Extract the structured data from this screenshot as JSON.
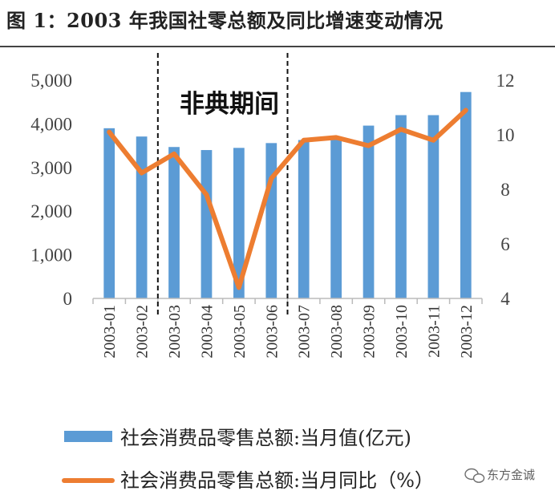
{
  "figure_title": "图 1：2003 年我国社零总额及同比增速变动情况",
  "chart_data": {
    "type": "bar",
    "categories": [
      "2003-01",
      "2003-02",
      "2003-03",
      "2003-04",
      "2003-05",
      "2003-06",
      "2003-07",
      "2003-08",
      "2003-09",
      "2003-10",
      "2003-11",
      "2003-12"
    ],
    "series": [
      {
        "name": "社会消费品零售总额:当月值(亿元)",
        "type": "bar",
        "axis": "left",
        "color": "#5b9bd5",
        "values": [
          3900,
          3710,
          3470,
          3400,
          3450,
          3560,
          3630,
          3680,
          3960,
          4200,
          4200,
          4730
        ]
      },
      {
        "name": "社会消费品零售总额:当月同比（%）",
        "type": "line",
        "axis": "right",
        "color": "#ed7d31",
        "values": [
          10.1,
          8.6,
          9.3,
          7.8,
          4.4,
          8.4,
          9.8,
          9.9,
          9.6,
          10.2,
          9.8,
          10.9
        ]
      }
    ],
    "y_left": {
      "min": 0,
      "max": 5000,
      "ticks": [
        0,
        1000,
        2000,
        3000,
        4000,
        5000
      ],
      "tick_labels": [
        "0",
        "1,000",
        "2,000",
        "3,000",
        "4,000",
        "5,000"
      ]
    },
    "y_right": {
      "min": 4,
      "max": 12,
      "ticks": [
        4,
        6,
        8,
        10,
        12
      ],
      "tick_labels": [
        "4",
        "6",
        "8",
        "10",
        "12"
      ]
    },
    "annotation": {
      "text": "非典期间",
      "from_category": "2003-03",
      "to_category": "2003-07"
    },
    "legend_position": "bottom"
  },
  "watermark": {
    "text": "东方金诚",
    "icon": "wechat-icon"
  }
}
